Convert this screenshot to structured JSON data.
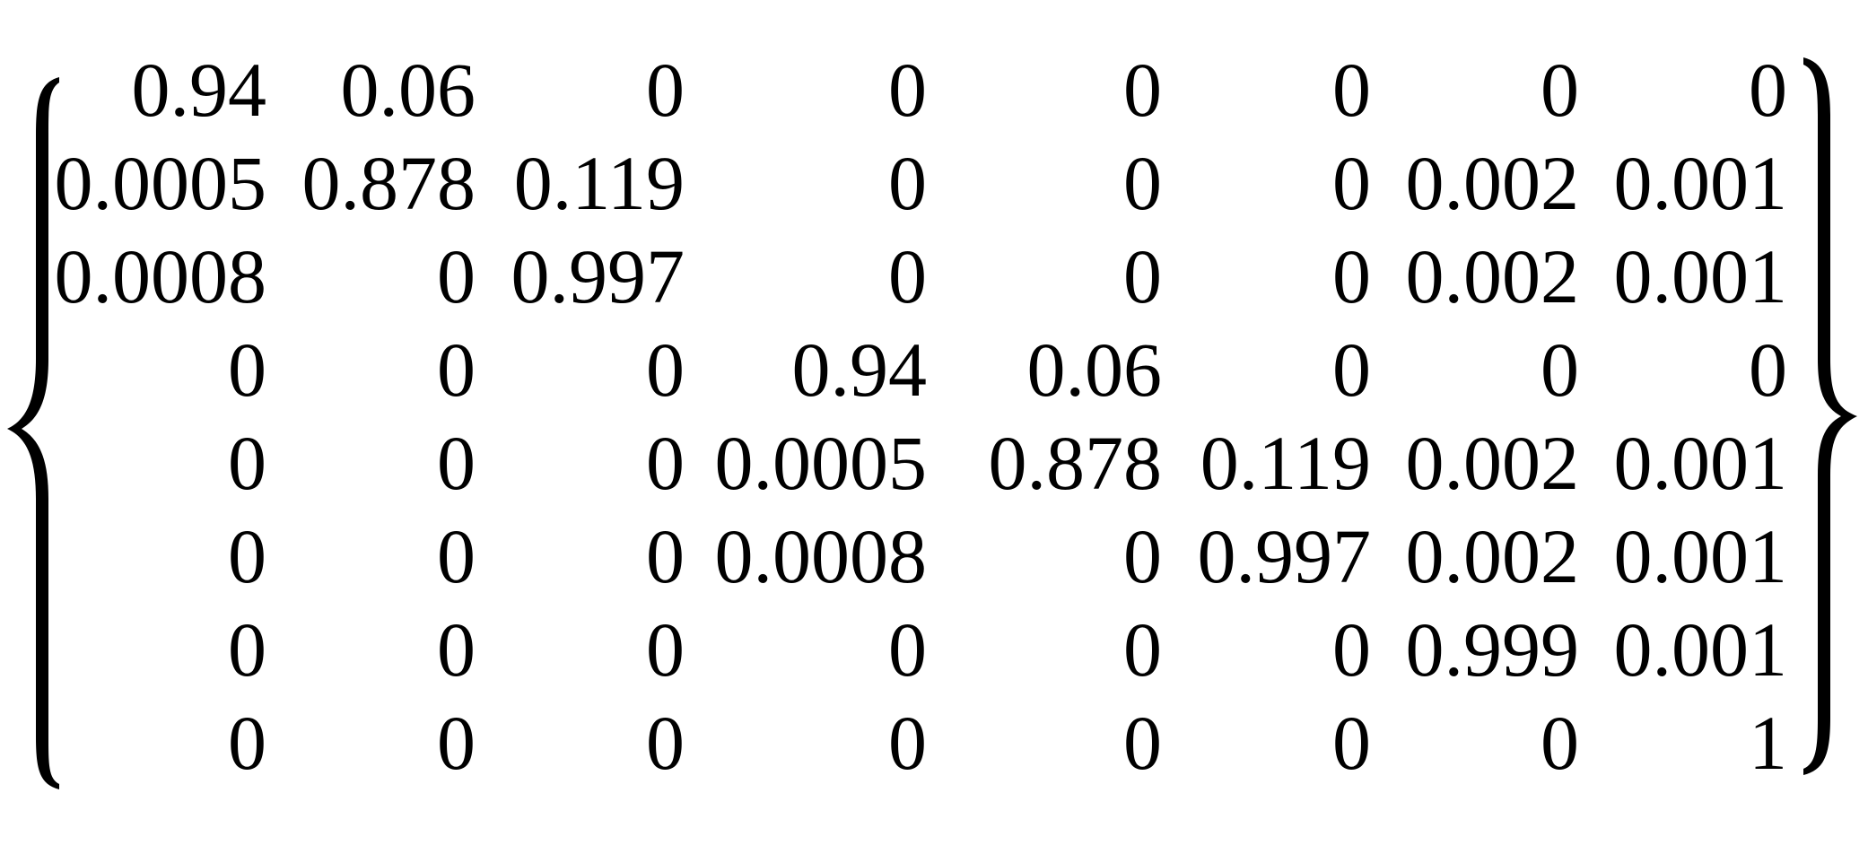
{
  "matrix": {
    "rows": [
      [
        "0.94",
        "0.06",
        "0",
        "0",
        "0",
        "0",
        "0",
        "0"
      ],
      [
        "0.0005",
        "0.878",
        "0.119",
        "0",
        "0",
        "0",
        "0.002",
        "0.001"
      ],
      [
        "0.0008",
        "0",
        "0.997",
        "0",
        "0",
        "0",
        "0.002",
        "0.001"
      ],
      [
        "0",
        "0",
        "0",
        "0.94",
        "0.06",
        "0",
        "0",
        "0"
      ],
      [
        "0",
        "0",
        "0",
        "0.0005",
        "0.878",
        "0.119",
        "0.002",
        "0.001"
      ],
      [
        "0",
        "0",
        "0",
        "0.0008",
        "0",
        "0.997",
        "0.002",
        "0.001"
      ],
      [
        "0",
        "0",
        "0",
        "0",
        "0",
        "0",
        "0.999",
        "0.001"
      ],
      [
        "0",
        "0",
        "0",
        "0",
        "0",
        "0",
        "0",
        "1"
      ]
    ]
  },
  "colors": {
    "text": "#000000",
    "background": "#ffffff"
  }
}
